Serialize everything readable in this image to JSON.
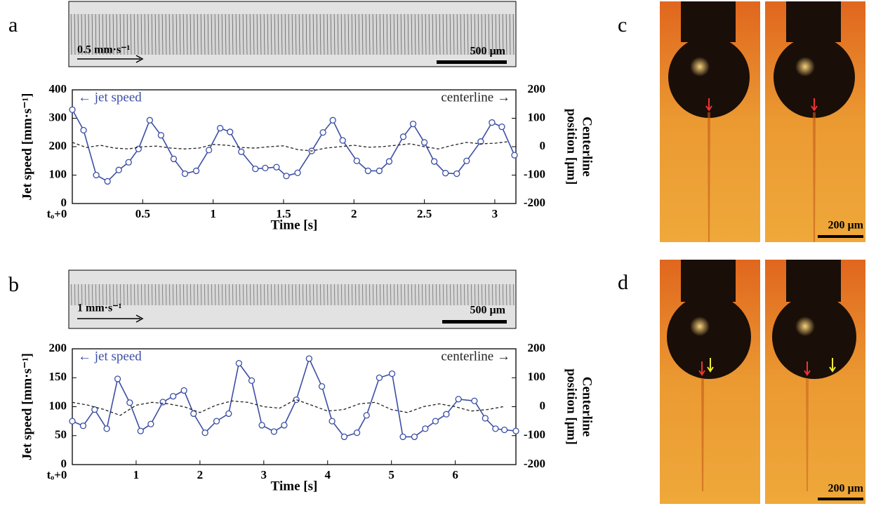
{
  "panels": {
    "a": {
      "label": "a",
      "velocity": "0.5 mm·s⁻¹",
      "scale_bar": "500 µm"
    },
    "b": {
      "label": "b",
      "velocity": "1 mm·s⁻¹",
      "scale_bar": "500 µm"
    },
    "c": {
      "label": "c",
      "scale_bar": "200 µm"
    },
    "d": {
      "label": "d",
      "scale_bar": "200 µm"
    }
  },
  "chart_data": [
    {
      "type": "line",
      "xlabel": "Time [s]",
      "ylabel": "Jet speed [mm·s⁻¹]",
      "y2label": [
        "Centerline",
        "position [µm]"
      ],
      "xlim": [
        0,
        3.15
      ],
      "ylim": [
        0,
        400
      ],
      "y2lim": [
        -200,
        200
      ],
      "xticks": [
        {
          "value": 0,
          "label": "tₒ+0"
        },
        0.5,
        1,
        1.5,
        2,
        2.5,
        3
      ],
      "yticks": [
        0,
        100,
        200,
        300,
        400
      ],
      "y2ticks": [
        -200,
        -100,
        0,
        100,
        200
      ],
      "series": [
        {
          "name": "← jet speed",
          "color": "#3b4ea6",
          "marker": "circle",
          "x": [
            0,
            0.08,
            0.17,
            0.25,
            0.33,
            0.4,
            0.47,
            0.55,
            0.63,
            0.72,
            0.8,
            0.88,
            0.97,
            1.05,
            1.12,
            1.2,
            1.3,
            1.37,
            1.45,
            1.52,
            1.6,
            1.7,
            1.78,
            1.85,
            1.92,
            2.02,
            2.1,
            2.18,
            2.25,
            2.35,
            2.42,
            2.5,
            2.57,
            2.65,
            2.73,
            2.8,
            2.9,
            2.98,
            3.05,
            3.14
          ],
          "values": [
            330,
            258,
            100,
            78,
            118,
            145,
            192,
            293,
            240,
            157,
            105,
            115,
            188,
            265,
            252,
            182,
            122,
            125,
            128,
            97,
            108,
            185,
            250,
            293,
            222,
            150,
            115,
            115,
            148,
            235,
            280,
            215,
            148,
            107,
            105,
            150,
            218,
            285,
            270,
            170
          ]
        },
        {
          "name": "centerline →",
          "color": "#222222",
          "dashed": true,
          "axis": "y2",
          "x": [
            0,
            0.1,
            0.2,
            0.3,
            0.4,
            0.5,
            0.6,
            0.7,
            0.8,
            0.9,
            1,
            1.1,
            1.2,
            1.3,
            1.4,
            1.5,
            1.6,
            1.7,
            1.8,
            1.9,
            2,
            2.1,
            2.2,
            2.3,
            2.4,
            2.5,
            2.6,
            2.7,
            2.8,
            2.9,
            3,
            3.1
          ],
          "values": [
            15,
            -3,
            5,
            -5,
            -8,
            0,
            2,
            -5,
            -8,
            -5,
            8,
            5,
            -3,
            -5,
            0,
            3,
            -10,
            -15,
            -5,
            0,
            5,
            -2,
            0,
            5,
            10,
            0,
            -8,
            5,
            15,
            10,
            12,
            18
          ]
        }
      ]
    },
    {
      "type": "line",
      "xlabel": "Time [s]",
      "ylabel": "Jet speed [mm·s⁻¹]",
      "y2label": [
        "Centerline",
        "position [µm]"
      ],
      "xlim": [
        0,
        6.95
      ],
      "ylim": [
        0,
        200
      ],
      "y2lim": [
        -200,
        200
      ],
      "xticks": [
        {
          "value": 0,
          "label": "tₒ+0"
        },
        1,
        2,
        3,
        4,
        5,
        6
      ],
      "yticks": [
        0,
        50,
        100,
        150,
        200
      ],
      "y2ticks": [
        -200,
        -100,
        0,
        100,
        200
      ],
      "series": [
        {
          "name": "← jet speed",
          "color": "#3b4ea6",
          "marker": "circle",
          "x": [
            0,
            0.17,
            0.35,
            0.54,
            0.71,
            0.9,
            1.07,
            1.23,
            1.42,
            1.58,
            1.75,
            1.9,
            2.08,
            2.26,
            2.45,
            2.61,
            2.81,
            2.97,
            3.16,
            3.32,
            3.51,
            3.71,
            3.91,
            4.07,
            4.26,
            4.46,
            4.61,
            4.81,
            5.01,
            5.18,
            5.36,
            5.53,
            5.69,
            5.86,
            6.05,
            6.3,
            6.47,
            6.63,
            6.77,
            6.95
          ],
          "values": [
            75,
            67,
            95,
            62,
            148,
            107,
            58,
            70,
            108,
            118,
            128,
            88,
            55,
            75,
            88,
            175,
            145,
            68,
            57,
            68,
            112,
            183,
            135,
            75,
            48,
            55,
            85,
            150,
            157,
            48,
            48,
            62,
            75,
            87,
            113,
            110,
            80,
            62,
            60,
            58
          ]
        },
        {
          "name": "centerline →",
          "color": "#222222",
          "dashed": true,
          "axis": "y2",
          "x": [
            0,
            0.25,
            0.5,
            0.75,
            1,
            1.25,
            1.5,
            1.75,
            2,
            2.25,
            2.5,
            2.75,
            3,
            3.25,
            3.5,
            3.75,
            4,
            4.25,
            4.5,
            4.75,
            5,
            5.25,
            5.5,
            5.75,
            6,
            6.25,
            6.5,
            6.75
          ],
          "values": [
            15,
            5,
            -10,
            -30,
            5,
            15,
            10,
            0,
            -20,
            5,
            20,
            15,
            0,
            -5,
            25,
            5,
            -15,
            -10,
            10,
            15,
            -10,
            -20,
            0,
            10,
            0,
            -15,
            -10,
            0
          ]
        }
      ]
    }
  ]
}
